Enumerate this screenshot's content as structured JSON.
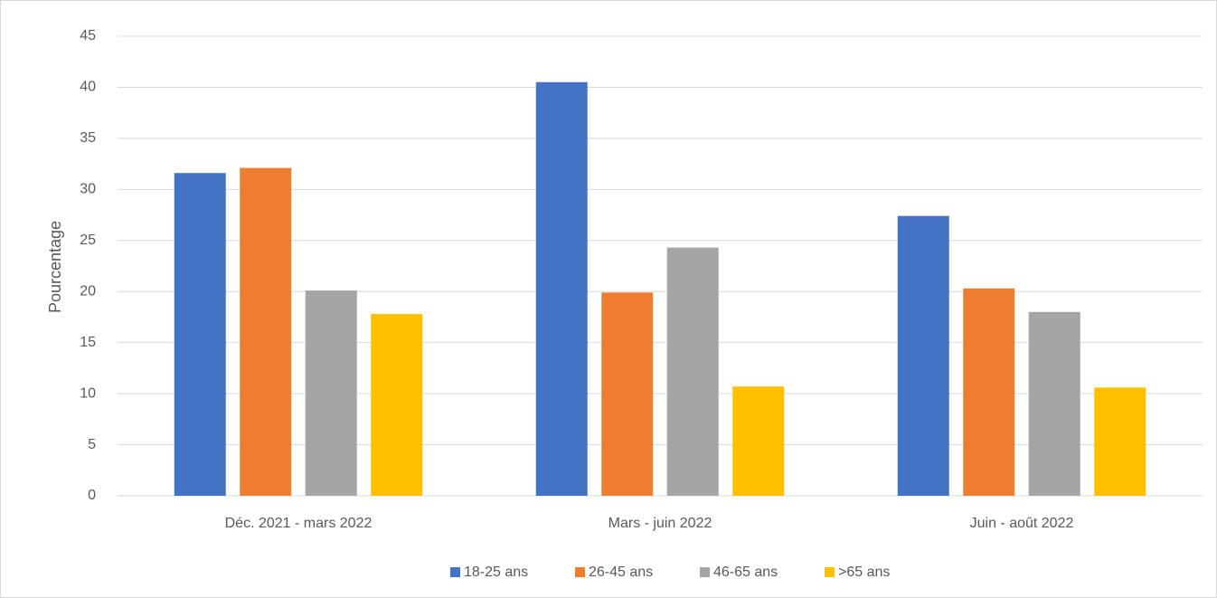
{
  "chart_data": {
    "type": "bar",
    "y_label": "Pourcentage",
    "categories": [
      "Déc. 2021 - mars 2022",
      "Mars - juin 2022",
      "Juin - août 2022"
    ],
    "series": [
      {
        "name": "18-25 ans",
        "color": "#4472c4",
        "values": [
          31.6,
          40.5,
          27.4
        ]
      },
      {
        "name": "26-45 ans",
        "color": "#ed7d31",
        "values": [
          32.1,
          19.9,
          20.3
        ]
      },
      {
        "name": "46-65 ans",
        "color": "#a5a5a5",
        "values": [
          20.1,
          24.3,
          18.0
        ]
      },
      {
        "name": ">65 ans",
        "color": "#ffc000",
        "values": [
          17.8,
          10.7,
          10.6
        ]
      }
    ],
    "ylim": [
      0,
      45
    ],
    "yticks": [
      0,
      5,
      10,
      15,
      20,
      25,
      30,
      35,
      40,
      45
    ],
    "grid": true,
    "legend": "bottom"
  }
}
